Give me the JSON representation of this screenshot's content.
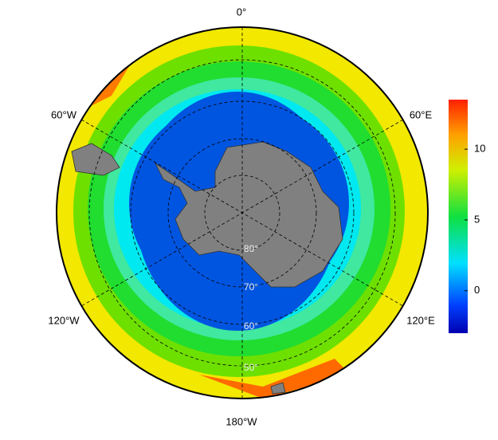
{
  "map": {
    "longitude_labels": [
      "0°",
      "60°E",
      "120°E",
      "180°W",
      "120°W",
      "60°W"
    ],
    "latitude_labels": [
      "80°",
      "70°",
      "60°",
      "50°"
    ],
    "colorbar": {
      "range": [
        -3,
        13.5
      ],
      "ticks": [
        0,
        5,
        10
      ]
    }
  }
}
